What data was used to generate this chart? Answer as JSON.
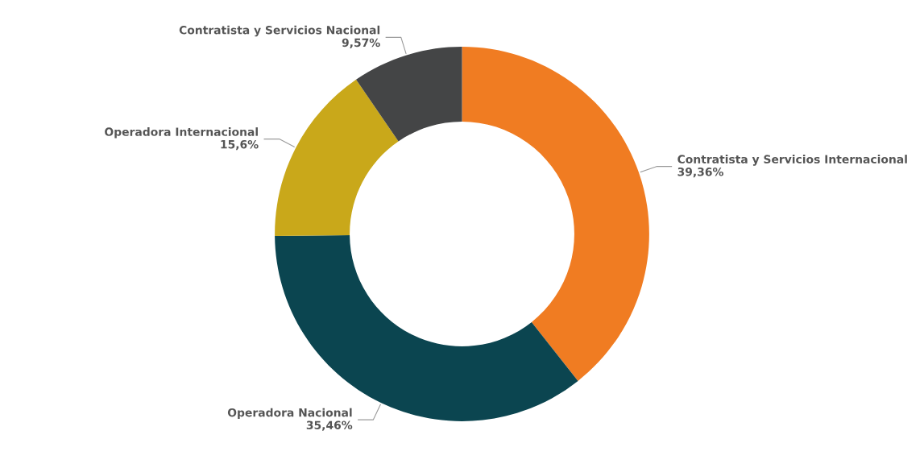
{
  "chart_data": {
    "type": "donut",
    "categories": [
      "Contratista y Servicios Internacional",
      "Operadora Nacional",
      "Operadora Internacional",
      "Contratista y Servicios Nacional"
    ],
    "values": [
      39.36,
      35.46,
      15.6,
      9.57
    ],
    "colors": [
      "#f07c22",
      "#0b4550",
      "#c9a81a",
      "#444546"
    ],
    "value_labels": [
      "39,36%",
      "35,46%",
      "15,6%",
      "9,57%"
    ]
  }
}
